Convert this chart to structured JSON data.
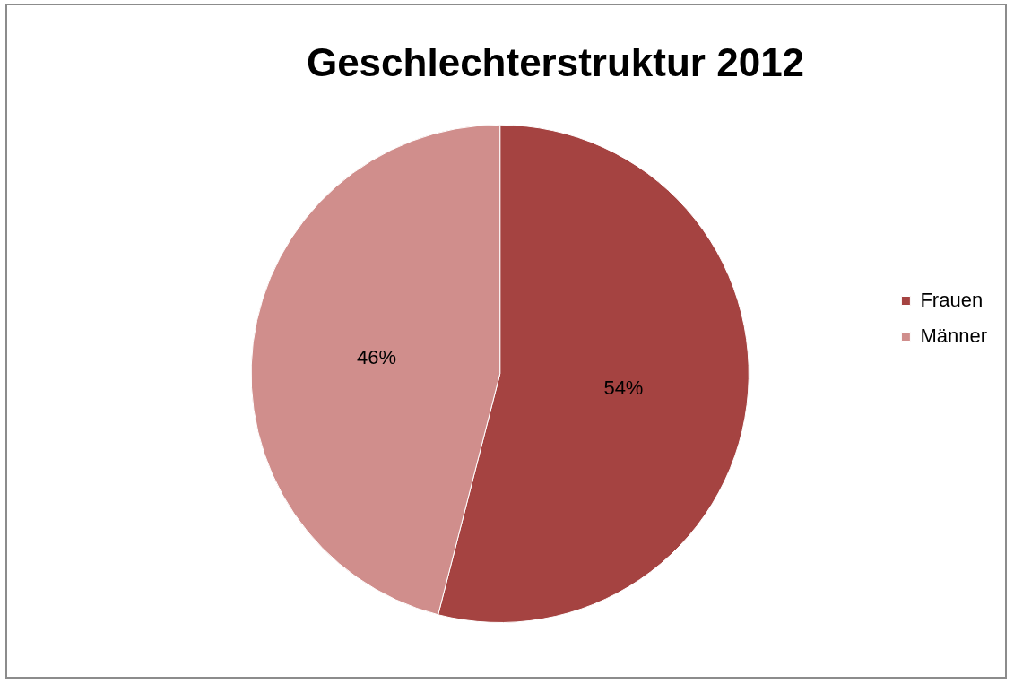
{
  "chart_data": {
    "type": "pie",
    "title": "Geschlechterstruktur 2012",
    "categories": [
      "Frauen",
      "Männer"
    ],
    "values": [
      54,
      46
    ],
    "colors": [
      "#a54341",
      "#d08e8c"
    ],
    "value_labels": [
      "54%",
      "46%"
    ],
    "legend": "right"
  }
}
